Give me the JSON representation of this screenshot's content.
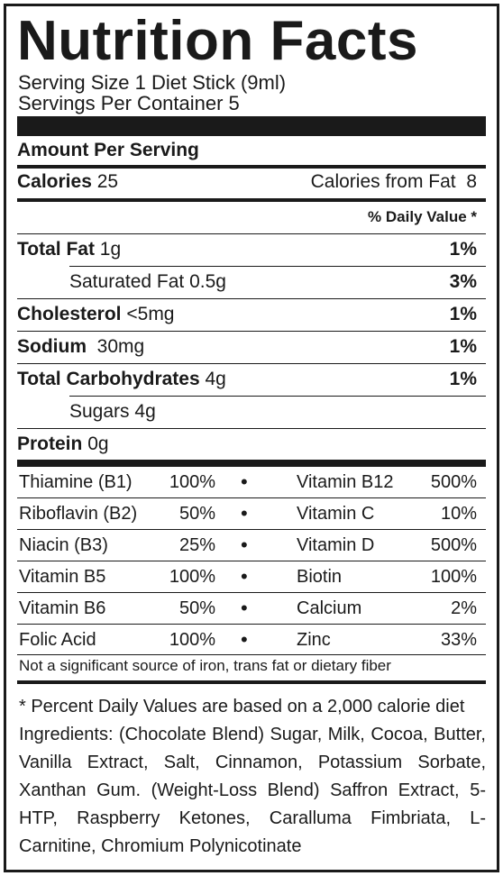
{
  "title": "Nutrition Facts",
  "serving_size": "Serving Size 1 Diet Stick (9ml)",
  "servings_per_container": "Servings Per Container 5",
  "amount_per_serving": "Amount Per Serving",
  "calories": {
    "label": "Calories",
    "value": "25",
    "from_fat_label": "Calories from Fat",
    "from_fat_value": "8"
  },
  "daily_value_header": "% Daily Value *",
  "nutrients": [
    {
      "name": "Total Fat",
      "amount": "1g",
      "dv": "1%"
    },
    {
      "name": "Saturated Fat",
      "amount": "0.5g",
      "dv": "3%"
    },
    {
      "name": "Cholesterol",
      "amount": "<5mg",
      "dv": "1%"
    },
    {
      "name": "Sodium",
      "amount": "30mg",
      "dv": "1%"
    },
    {
      "name": "Total Carbohydrates",
      "amount": "4g",
      "dv": "1%"
    },
    {
      "name": "Sugars",
      "amount": "4g",
      "dv": ""
    },
    {
      "name": "Protein",
      "amount": "0g",
      "dv": ""
    }
  ],
  "vitamins": [
    {
      "left_name": "Thiamine (B1)",
      "left_pct": "100%",
      "right_name": "Vitamin B12",
      "right_pct": "500%"
    },
    {
      "left_name": "Riboflavin (B2)",
      "left_pct": "50%",
      "right_name": "Vitamin C",
      "right_pct": "10%"
    },
    {
      "left_name": "Niacin (B3)",
      "left_pct": "25%",
      "right_name": "Vitamin D",
      "right_pct": "500%"
    },
    {
      "left_name": "Vitamin B5",
      "left_pct": "100%",
      "right_name": "Biotin",
      "right_pct": "100%"
    },
    {
      "left_name": "Vitamin B6",
      "left_pct": "50%",
      "right_name": "Calcium",
      "right_pct": "2%"
    },
    {
      "left_name": "Folic Acid",
      "left_pct": "100%",
      "right_name": "Zinc",
      "right_pct": "33%"
    }
  ],
  "bullet": "•",
  "not_significant": "Not a significant source of iron, trans fat or dietary fiber",
  "footnote": "* Percent Daily Values are based on a 2,000 calorie diet",
  "ingredients": "Ingredients: (Chocolate Blend) Sugar, Milk, Cocoa, Butter, Vanilla Extract, Salt, Cinnamon, Potassium Sorbate, Xanthan Gum. (Weight-Loss Blend) Saffron Extract, 5-HTP, Raspberry Ketones, Caralluma Fimbriata, L-Carnitine, Chromium Polynicotinate"
}
